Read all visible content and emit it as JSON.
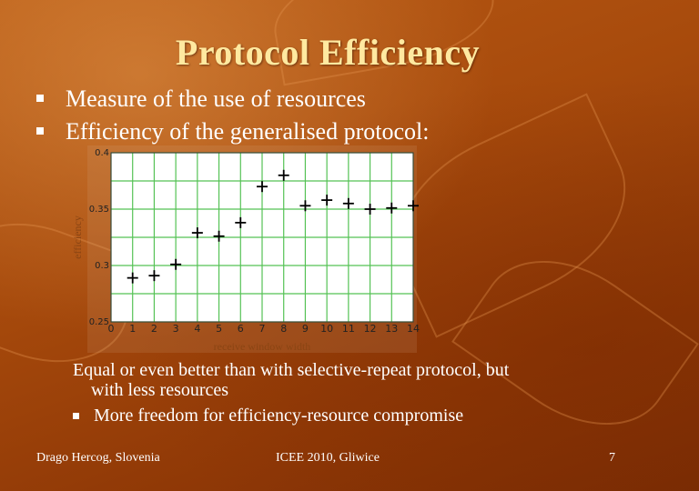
{
  "slide": {
    "title": "Protocol Efficiency",
    "bullets": [
      "Measure of the use of resources",
      "Efficiency of the generalised protocol:"
    ],
    "note_line1": "Equal or even better than with selective-repeat protocol, but",
    "note_line2": "with less resources",
    "sub_bullet": "More freedom for efficiency-resource compromise",
    "footer_left": "Drago Hercog, Slovenia",
    "footer_center": "ICEE 2010, Gliwice",
    "footer_right": "7"
  },
  "colors": {
    "title": "#ffe9a0",
    "grid": "#55c255",
    "plot_background": "#ffffff",
    "marker": "#000000",
    "axis_label": "#8b4513"
  },
  "chart_data": {
    "type": "scatter",
    "title": "",
    "xlabel": "receive window width",
    "ylabel": "efficiency",
    "xlim": [
      0,
      14
    ],
    "ylim": [
      0.25,
      0.4
    ],
    "xticks": [
      "0",
      "1",
      "2",
      "3",
      "4",
      "5",
      "6",
      "7",
      "8",
      "9",
      "10",
      "11",
      "12",
      "13",
      "14"
    ],
    "yticks": [
      "0.25",
      "0.3",
      "0.35",
      "0.4"
    ],
    "grid": true,
    "marker": "plus",
    "series": [
      {
        "points": [
          [
            1,
            0.289
          ],
          [
            2,
            0.291
          ],
          [
            3,
            0.301
          ],
          [
            4,
            0.329
          ],
          [
            5,
            0.326
          ],
          [
            6,
            0.338
          ],
          [
            7,
            0.37
          ],
          [
            8,
            0.38
          ],
          [
            9,
            0.353
          ],
          [
            10,
            0.358
          ],
          [
            11,
            0.355
          ],
          [
            12,
            0.35
          ],
          [
            13,
            0.351
          ],
          [
            14,
            0.353
          ]
        ]
      }
    ]
  }
}
